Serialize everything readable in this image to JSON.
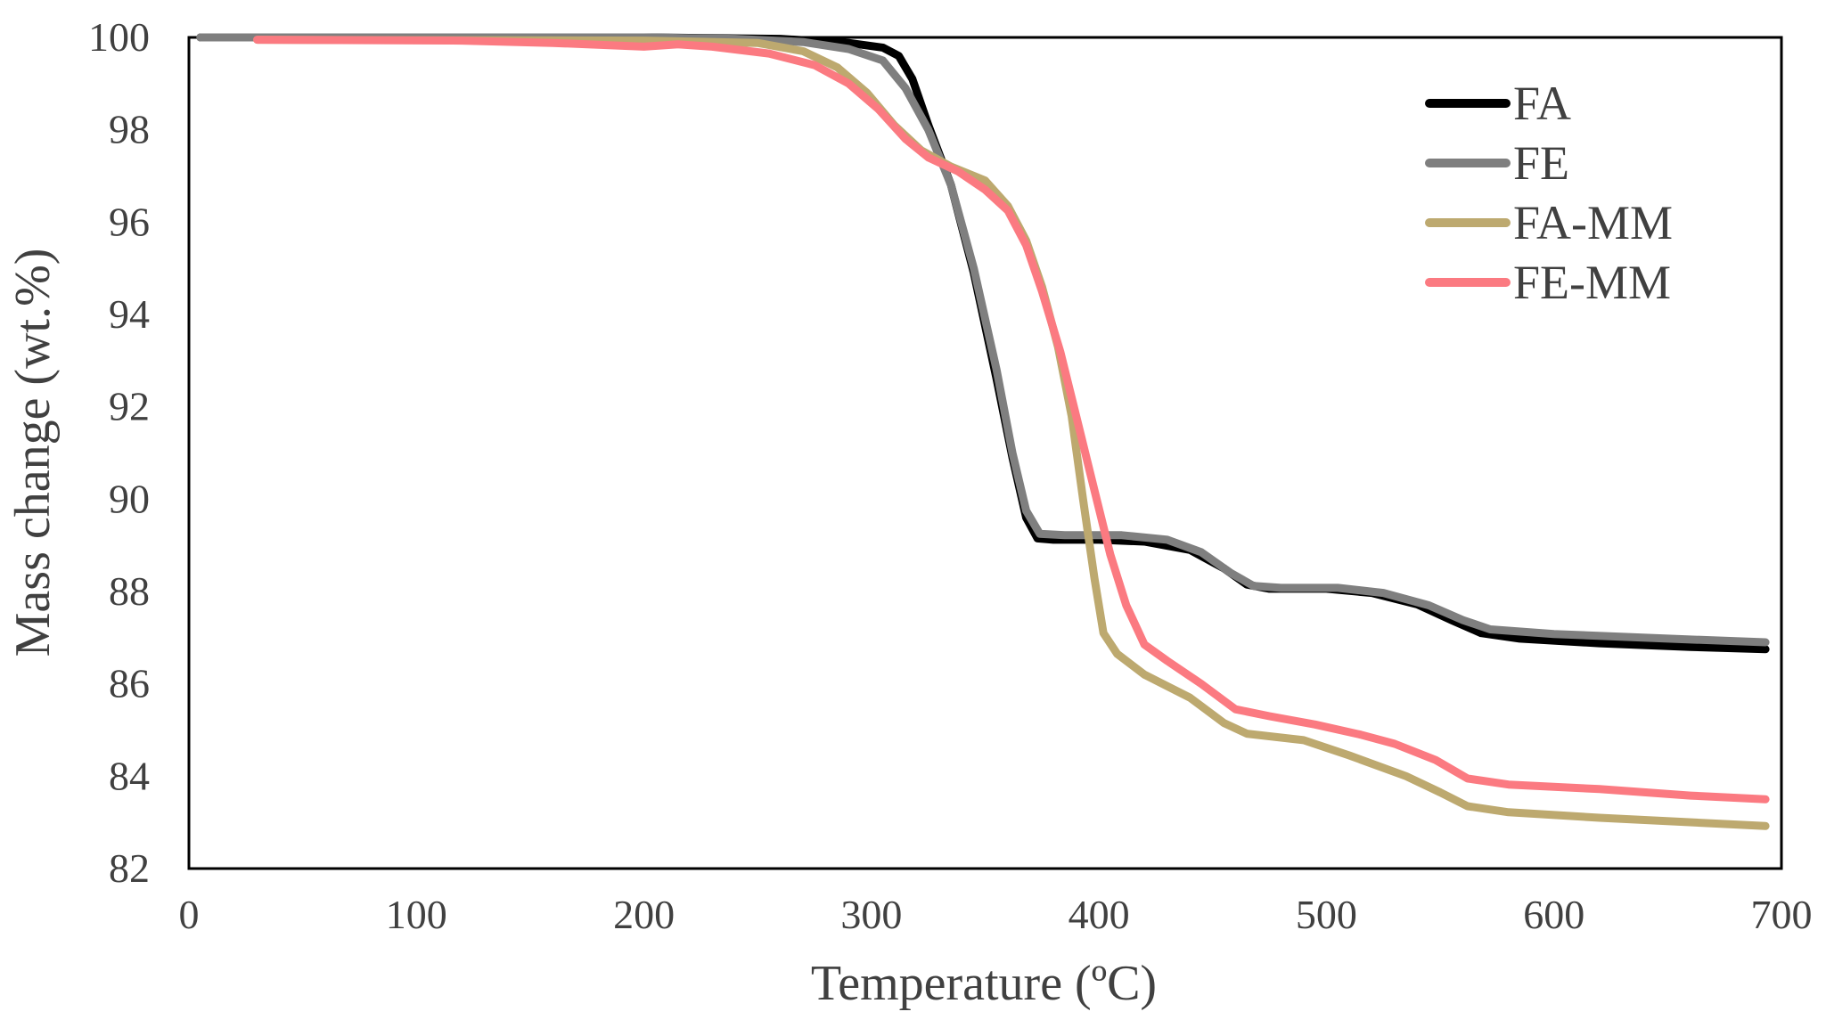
{
  "chart_data": {
    "type": "line",
    "title": "",
    "xlabel": "Temperature (ºC)",
    "ylabel": "Mass change (wt.%)",
    "xlim": [
      0,
      700
    ],
    "ylim": [
      82,
      100
    ],
    "xticks": [
      "0",
      "100",
      "200",
      "300",
      "400",
      "500",
      "600",
      "700"
    ],
    "yticks": [
      "82",
      "84",
      "86",
      "88",
      "90",
      "92",
      "94",
      "96",
      "98",
      "100"
    ],
    "grid": false,
    "legend_position": "top-right",
    "series": [
      {
        "name": "FA",
        "color": "#000000",
        "points": [
          [
            5,
            100
          ],
          [
            200,
            100
          ],
          [
            260,
            99.97
          ],
          [
            290,
            99.88
          ],
          [
            305,
            99.78
          ],
          [
            312,
            99.6
          ],
          [
            318,
            99.1
          ],
          [
            325,
            98.1
          ],
          [
            335,
            96.8
          ],
          [
            345,
            94.9
          ],
          [
            355,
            92.6
          ],
          [
            362,
            90.9
          ],
          [
            368,
            89.6
          ],
          [
            373,
            89.15
          ],
          [
            380,
            89.12
          ],
          [
            400,
            89.12
          ],
          [
            420,
            89.08
          ],
          [
            440,
            88.9
          ],
          [
            455,
            88.5
          ],
          [
            465,
            88.15
          ],
          [
            475,
            88.06
          ],
          [
            500,
            88.06
          ],
          [
            520,
            87.97
          ],
          [
            540,
            87.72
          ],
          [
            555,
            87.38
          ],
          [
            568,
            87.1
          ],
          [
            585,
            86.98
          ],
          [
            620,
            86.88
          ],
          [
            660,
            86.8
          ],
          [
            693,
            86.75
          ]
        ]
      },
      {
        "name": "FE",
        "color": "#7f7f7f",
        "points": [
          [
            5,
            100
          ],
          [
            200,
            100
          ],
          [
            240,
            99.97
          ],
          [
            270,
            99.9
          ],
          [
            290,
            99.75
          ],
          [
            305,
            99.5
          ],
          [
            315,
            98.9
          ],
          [
            325,
            98.0
          ],
          [
            335,
            96.8
          ],
          [
            345,
            95.0
          ],
          [
            355,
            92.8
          ],
          [
            362,
            91.0
          ],
          [
            368,
            89.75
          ],
          [
            374,
            89.25
          ],
          [
            385,
            89.22
          ],
          [
            410,
            89.22
          ],
          [
            430,
            89.12
          ],
          [
            445,
            88.85
          ],
          [
            458,
            88.4
          ],
          [
            468,
            88.12
          ],
          [
            480,
            88.08
          ],
          [
            505,
            88.08
          ],
          [
            525,
            87.97
          ],
          [
            545,
            87.7
          ],
          [
            560,
            87.38
          ],
          [
            572,
            87.18
          ],
          [
            600,
            87.08
          ],
          [
            650,
            86.98
          ],
          [
            693,
            86.9
          ]
        ]
      },
      {
        "name": "FA-MM",
        "color": "#bda96f",
        "points": [
          [
            30,
            99.95
          ],
          [
            200,
            99.93
          ],
          [
            250,
            99.88
          ],
          [
            270,
            99.7
          ],
          [
            285,
            99.35
          ],
          [
            298,
            98.8
          ],
          [
            310,
            98.1
          ],
          [
            322,
            97.55
          ],
          [
            335,
            97.2
          ],
          [
            350,
            96.9
          ],
          [
            360,
            96.35
          ],
          [
            368,
            95.6
          ],
          [
            375,
            94.6
          ],
          [
            382,
            93.3
          ],
          [
            388,
            91.8
          ],
          [
            393,
            90.0
          ],
          [
            398,
            88.3
          ],
          [
            402,
            87.1
          ],
          [
            408,
            86.65
          ],
          [
            420,
            86.2
          ],
          [
            440,
            85.7
          ],
          [
            455,
            85.15
          ],
          [
            465,
            84.92
          ],
          [
            490,
            84.78
          ],
          [
            510,
            84.45
          ],
          [
            535,
            84.0
          ],
          [
            550,
            83.65
          ],
          [
            562,
            83.35
          ],
          [
            580,
            83.22
          ],
          [
            620,
            83.1
          ],
          [
            693,
            82.92
          ]
        ]
      },
      {
        "name": "FE-MM",
        "color": "#fb7a81",
        "points": [
          [
            30,
            99.95
          ],
          [
            120,
            99.93
          ],
          [
            160,
            99.88
          ],
          [
            200,
            99.8
          ],
          [
            215,
            99.85
          ],
          [
            230,
            99.8
          ],
          [
            255,
            99.65
          ],
          [
            275,
            99.4
          ],
          [
            290,
            99.0
          ],
          [
            303,
            98.45
          ],
          [
            315,
            97.8
          ],
          [
            325,
            97.4
          ],
          [
            338,
            97.1
          ],
          [
            350,
            96.7
          ],
          [
            360,
            96.25
          ],
          [
            368,
            95.5
          ],
          [
            375,
            94.5
          ],
          [
            383,
            93.2
          ],
          [
            390,
            91.8
          ],
          [
            398,
            90.2
          ],
          [
            405,
            88.8
          ],
          [
            412,
            87.7
          ],
          [
            420,
            86.85
          ],
          [
            430,
            86.5
          ],
          [
            445,
            86.0
          ],
          [
            460,
            85.45
          ],
          [
            475,
            85.3
          ],
          [
            495,
            85.12
          ],
          [
            515,
            84.9
          ],
          [
            530,
            84.7
          ],
          [
            548,
            84.35
          ],
          [
            562,
            83.95
          ],
          [
            580,
            83.82
          ],
          [
            620,
            83.72
          ],
          [
            660,
            83.58
          ],
          [
            693,
            83.5
          ]
        ]
      }
    ]
  }
}
